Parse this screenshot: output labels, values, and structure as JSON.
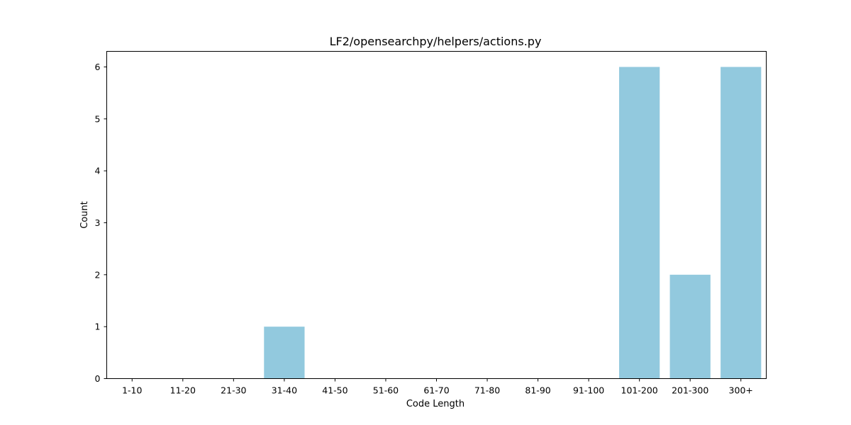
{
  "chart_data": {
    "type": "bar",
    "title": "LF2/opensearchpy/helpers/actions.py",
    "xlabel": "Code Length",
    "ylabel": "Count",
    "categories": [
      "1-10",
      "11-20",
      "21-30",
      "31-40",
      "41-50",
      "51-60",
      "61-70",
      "71-80",
      "81-90",
      "91-100",
      "101-200",
      "201-300",
      "300+"
    ],
    "values": [
      0,
      0,
      0,
      1,
      0,
      0,
      0,
      0,
      0,
      0,
      6,
      2,
      6
    ],
    "ylim": [
      0,
      6.3
    ],
    "yticks": [
      0,
      1,
      2,
      3,
      4,
      5,
      6
    ],
    "grid": false,
    "legend": "none",
    "bar_color": "#92c9de",
    "axis_color": "#000000"
  }
}
